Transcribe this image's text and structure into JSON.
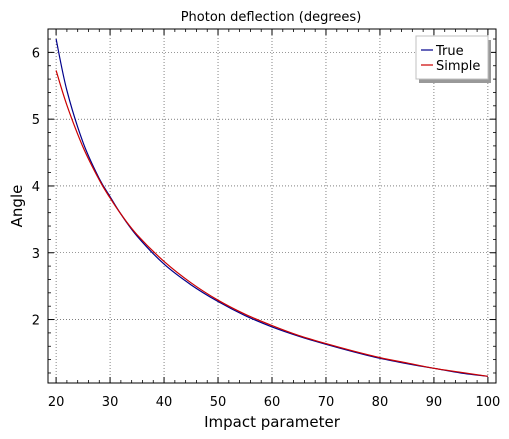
{
  "chart_data": {
    "type": "line",
    "title": "Photon deflection (degrees)",
    "xlabel": "Impact parameter",
    "ylabel": "Angle",
    "xlim": [
      18.5,
      101.5
    ],
    "ylim": [
      1.05,
      6.35
    ],
    "xticks": [
      20,
      30,
      40,
      50,
      60,
      70,
      80,
      90,
      100
    ],
    "yticks": [
      2,
      3,
      4,
      5,
      6
    ],
    "grid": true,
    "legend_position": "top-right",
    "series": [
      {
        "name": "True",
        "color": "#00008b",
        "x": [
          20,
          22,
          25,
          28,
          30,
          32,
          35,
          40,
          45,
          50,
          55,
          60,
          65,
          70,
          75,
          80,
          85,
          90,
          95,
          100
        ],
        "y": [
          6.2,
          5.43,
          4.65,
          4.11,
          3.84,
          3.58,
          3.25,
          2.83,
          2.52,
          2.27,
          2.06,
          1.89,
          1.75,
          1.63,
          1.52,
          1.42,
          1.34,
          1.27,
          1.2,
          1.15
        ]
      },
      {
        "name": "Simple",
        "color": "#cc0000",
        "x": [
          20,
          22,
          25,
          28,
          30,
          32,
          35,
          40,
          45,
          50,
          55,
          60,
          65,
          70,
          75,
          80,
          85,
          90,
          95,
          100
        ],
        "y": [
          5.73,
          5.21,
          4.58,
          4.09,
          3.82,
          3.58,
          3.27,
          2.87,
          2.55,
          2.29,
          2.08,
          1.91,
          1.76,
          1.64,
          1.53,
          1.43,
          1.35,
          1.27,
          1.21,
          1.15
        ]
      }
    ]
  }
}
